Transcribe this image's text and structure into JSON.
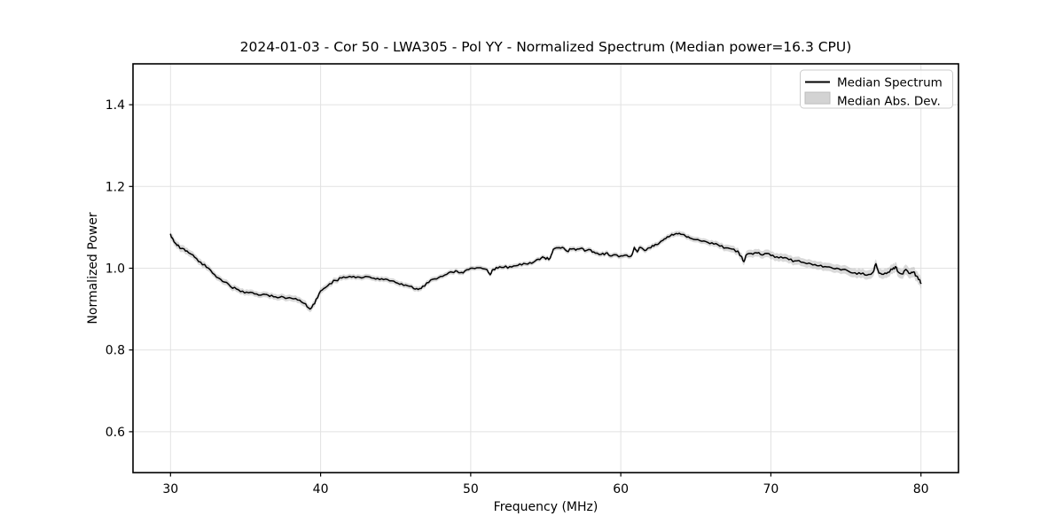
{
  "figure": {
    "background": "#ffffff"
  },
  "chart_data": {
    "type": "line",
    "title": "2024-01-03 - Cor 50 - LWA305 - Pol YY - Normalized Spectrum (Median power=16.3 CPU)",
    "xlabel": "Frequency (MHz)",
    "ylabel": "Normalized Power",
    "xlim": [
      27.5,
      82.5
    ],
    "ylim": [
      0.5,
      1.5
    ],
    "x_ticks": [
      30,
      40,
      50,
      60,
      70,
      80
    ],
    "y_ticks": [
      0.6,
      0.8,
      1.0,
      1.2,
      1.4
    ],
    "grid": true,
    "legend": {
      "position": "upper right",
      "entries": [
        {
          "label": "Median Spectrum",
          "type": "line",
          "color": "#000000"
        },
        {
          "label": "Median Abs. Dev.",
          "type": "patch",
          "color": "#d3d3d3"
        }
      ]
    },
    "style": {
      "line_color": "#000000",
      "line_width": 1.5,
      "band_color": "#aaaaaa",
      "band_opacity": 0.45,
      "grid_color": "#e2e2e2",
      "spine_color": "#000000",
      "noise_amplitude": 0.0033,
      "noise_seed": 42
    },
    "series": [
      {
        "name": "Median Spectrum",
        "type": "line",
        "points": [
          [
            30.0,
            1.083
          ],
          [
            30.1,
            1.075
          ],
          [
            30.3,
            1.062
          ],
          [
            30.5,
            1.057
          ],
          [
            30.7,
            1.048
          ],
          [
            31.0,
            1.042
          ],
          [
            31.3,
            1.036
          ],
          [
            31.6,
            1.027
          ],
          [
            32.0,
            1.015
          ],
          [
            32.4,
            1.002
          ],
          [
            32.8,
            0.988
          ],
          [
            33.2,
            0.976
          ],
          [
            33.6,
            0.966
          ],
          [
            34.0,
            0.955
          ],
          [
            34.4,
            0.949
          ],
          [
            34.8,
            0.944
          ],
          [
            35.2,
            0.94
          ],
          [
            35.6,
            0.937
          ],
          [
            36.0,
            0.934
          ],
          [
            36.3,
            0.936
          ],
          [
            36.6,
            0.931
          ],
          [
            37.0,
            0.93
          ],
          [
            37.4,
            0.931
          ],
          [
            37.8,
            0.927
          ],
          [
            38.2,
            0.925
          ],
          [
            38.6,
            0.922
          ],
          [
            39.0,
            0.913
          ],
          [
            39.3,
            0.9
          ],
          [
            39.6,
            0.913
          ],
          [
            39.9,
            0.938
          ],
          [
            40.2,
            0.95
          ],
          [
            40.6,
            0.962
          ],
          [
            41.0,
            0.97
          ],
          [
            41.4,
            0.976
          ],
          [
            41.8,
            0.978
          ],
          [
            42.2,
            0.98
          ],
          [
            42.6,
            0.978
          ],
          [
            43.0,
            0.98
          ],
          [
            43.4,
            0.976
          ],
          [
            43.8,
            0.975
          ],
          [
            44.2,
            0.972
          ],
          [
            44.6,
            0.969
          ],
          [
            45.0,
            0.965
          ],
          [
            45.4,
            0.962
          ],
          [
            45.8,
            0.957
          ],
          [
            46.2,
            0.95
          ],
          [
            46.5,
            0.948
          ],
          [
            46.8,
            0.956
          ],
          [
            47.2,
            0.965
          ],
          [
            47.6,
            0.974
          ],
          [
            48.0,
            0.98
          ],
          [
            48.4,
            0.985
          ],
          [
            48.8,
            0.99
          ],
          [
            49.0,
            0.994
          ],
          [
            49.3,
            0.989
          ],
          [
            49.6,
            0.993
          ],
          [
            50.0,
            1.0
          ],
          [
            50.4,
            1.001
          ],
          [
            50.8,
            0.999
          ],
          [
            51.1,
            0.996
          ],
          [
            51.3,
            0.984
          ],
          [
            51.5,
            0.997
          ],
          [
            51.8,
            1.0
          ],
          [
            52.2,
            1.002
          ],
          [
            52.6,
            1.004
          ],
          [
            53.0,
            1.006
          ],
          [
            53.4,
            1.008
          ],
          [
            53.8,
            1.01
          ],
          [
            54.2,
            1.015
          ],
          [
            54.5,
            1.022
          ],
          [
            54.8,
            1.028
          ],
          [
            55.0,
            1.022
          ],
          [
            55.3,
            1.025
          ],
          [
            55.5,
            1.046
          ],
          [
            55.8,
            1.05
          ],
          [
            56.1,
            1.051
          ],
          [
            56.4,
            1.042
          ],
          [
            56.7,
            1.047
          ],
          [
            57.0,
            1.044
          ],
          [
            57.3,
            1.048
          ],
          [
            57.6,
            1.042
          ],
          [
            58.0,
            1.045
          ],
          [
            58.3,
            1.037
          ],
          [
            58.7,
            1.034
          ],
          [
            59.0,
            1.037
          ],
          [
            59.3,
            1.03
          ],
          [
            59.6,
            1.033
          ],
          [
            60.0,
            1.03
          ],
          [
            60.4,
            1.032
          ],
          [
            60.7,
            1.03
          ],
          [
            60.9,
            1.051
          ],
          [
            61.1,
            1.04
          ],
          [
            61.3,
            1.051
          ],
          [
            61.6,
            1.043
          ],
          [
            61.9,
            1.05
          ],
          [
            62.2,
            1.054
          ],
          [
            62.5,
            1.059
          ],
          [
            62.8,
            1.068
          ],
          [
            63.1,
            1.077
          ],
          [
            63.4,
            1.083
          ],
          [
            63.7,
            1.085
          ],
          [
            64.0,
            1.083
          ],
          [
            64.3,
            1.079
          ],
          [
            64.6,
            1.074
          ],
          [
            65.0,
            1.07
          ],
          [
            65.4,
            1.066
          ],
          [
            65.8,
            1.063
          ],
          [
            66.2,
            1.059
          ],
          [
            66.6,
            1.054
          ],
          [
            67.0,
            1.05
          ],
          [
            67.4,
            1.047
          ],
          [
            67.8,
            1.042
          ],
          [
            68.0,
            1.03
          ],
          [
            68.2,
            1.016
          ],
          [
            68.4,
            1.034
          ],
          [
            68.7,
            1.036
          ],
          [
            69.0,
            1.038
          ],
          [
            69.3,
            1.034
          ],
          [
            69.6,
            1.036
          ],
          [
            70.0,
            1.031
          ],
          [
            70.4,
            1.028
          ],
          [
            70.8,
            1.025
          ],
          [
            71.2,
            1.021
          ],
          [
            71.6,
            1.018
          ],
          [
            72.0,
            1.015
          ],
          [
            72.4,
            1.011
          ],
          [
            72.8,
            1.008
          ],
          [
            73.2,
            1.006
          ],
          [
            73.6,
            1.004
          ],
          [
            74.0,
            1.002
          ],
          [
            74.4,
            1.0
          ],
          [
            74.8,
            0.997
          ],
          [
            75.2,
            0.992
          ],
          [
            75.6,
            0.989
          ],
          [
            76.0,
            0.986
          ],
          [
            76.4,
            0.983
          ],
          [
            76.8,
            0.99
          ],
          [
            77.0,
            1.011
          ],
          [
            77.2,
            0.988
          ],
          [
            77.5,
            0.985
          ],
          [
            77.8,
            0.99
          ],
          [
            78.1,
            0.997
          ],
          [
            78.3,
            1.004
          ],
          [
            78.5,
            0.99
          ],
          [
            78.8,
            0.986
          ],
          [
            79.0,
            0.997
          ],
          [
            79.3,
            0.987
          ],
          [
            79.5,
            0.991
          ],
          [
            79.7,
            0.981
          ],
          [
            79.9,
            0.972
          ],
          [
            80.0,
            0.963
          ]
        ]
      },
      {
        "name": "Median Abs. Dev.",
        "type": "band",
        "half_width_points": [
          [
            30,
            0.009
          ],
          [
            33,
            0.0075
          ],
          [
            36,
            0.007
          ],
          [
            39,
            0.008
          ],
          [
            42,
            0.0065
          ],
          [
            45,
            0.0065
          ],
          [
            48,
            0.006
          ],
          [
            51,
            0.0055
          ],
          [
            54,
            0.0055
          ],
          [
            57,
            0.006
          ],
          [
            60,
            0.006
          ],
          [
            63,
            0.0065
          ],
          [
            66,
            0.007
          ],
          [
            68,
            0.009
          ],
          [
            70,
            0.0095
          ],
          [
            72,
            0.01
          ],
          [
            74,
            0.01
          ],
          [
            76,
            0.011
          ],
          [
            78,
            0.0115
          ],
          [
            80,
            0.013
          ]
        ]
      }
    ]
  }
}
